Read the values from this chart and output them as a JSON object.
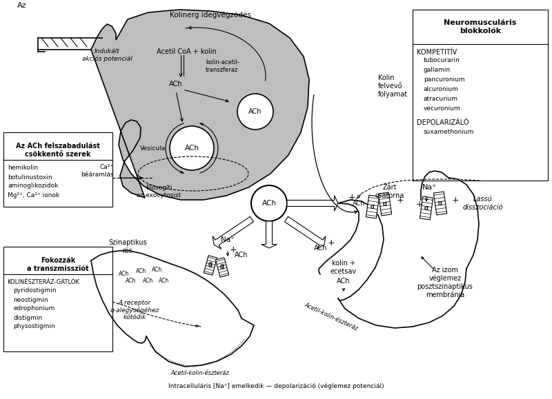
{
  "box_right_title": "Neuromusculáris\nblokkolók",
  "kompetitiv_label": "KOMPETITÍV",
  "kompetitiv_drugs": [
    "tubocurarin",
    "gallamin",
    "pancuronium",
    "alcuronium",
    "atracurium",
    "vecuronium"
  ],
  "depol_label": "DEPOLARIZÁLÓ",
  "depol_drugs": [
    "suxamethonium"
  ],
  "ach_suppress_title1": "Az ACh felszabadulást",
  "ach_suppress_title2": "csökkentő szerek",
  "ach_suppress_drugs": [
    "hemikolin",
    "botulinustoxin",
    "aminoglikozidok",
    "Mg²⁺, Ca²⁺ ionok"
  ],
  "fokozzak_title1": "Fokozzák",
  "fokozzak_title2": "a transzmissziót",
  "kolineszteraz_label": "KOLINÉSZTERÁZ-GÁTLÓK",
  "kolineszteraz_drugs": [
    "pyridostigmin",
    "neostigmin",
    "edrophonium",
    "distigmin",
    "physostigmin"
  ],
  "kolinerg_text": "Kolinerg idegvégzödés",
  "indukalt_text": "Indukált\nakciós potenciál",
  "acetil_coa_text": "Acetil CoA + kolin",
  "kolin_acetil_text": "kolin-acetil-\ntranszferaz",
  "vesicula_text": "Vesicula",
  "ca_text": "Ca²⁺\nbéáramlás",
  "elosegiti_text": "Elösegíti\naz exocytosist",
  "szinaptikus_res_text": "Szinaptikus\nrés",
  "na_text": "Na⁺",
  "receptor_text": "A receptor\nα-alegységéhez\nkötödik",
  "kolin_felvevo_text": "Kolin\nfelvevő\nfolyamat",
  "kolin_ecetsav_text": "kolin +\necetsav",
  "acetilkolin_eszteraz_text": "Acetil-kolin-észteráz",
  "intracell_text": "Intracelluláris [Na⁺] emelkedik — depolarizáció (véglemez potenciál)",
  "zart_csatorna_text": "Zárt\ncsatorna",
  "na_right_text": "Na⁺",
  "lassu_text": "Lassú\ndisszociáció",
  "izom_text": "Az izom\nvéglemez\nposztszinaptikus\nmembránja",
  "gray_color": "#bebebe"
}
